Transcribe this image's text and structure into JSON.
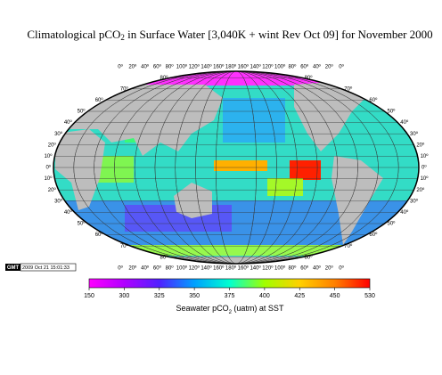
{
  "map": {
    "title": [
      "Climatological pCO",
      "2",
      " in Surface Water [3,040K + wint Rev Oct 09] for November 2000"
    ],
    "lon_labels": [
      "0º",
      "20º",
      "40º",
      "60º",
      "80º",
      "100º",
      "120º",
      "140º",
      "160º",
      "180º",
      "160º",
      "140º",
      "120º",
      "100º",
      "80º",
      "60º",
      "40º",
      "20º",
      "0º"
    ],
    "lat_labels": [
      "80º",
      "70º",
      "60º",
      "50º",
      "40º",
      "30º",
      "20º",
      "10º",
      "0º",
      "10º",
      "20º",
      "30º",
      "40º",
      "50º",
      "60º",
      "70º",
      "80º"
    ],
    "stamp": {
      "logo": "GMT",
      "time": "2009 Oct 21 15:01:33"
    },
    "colorbar": {
      "ticks": [
        150,
        300,
        325,
        350,
        375,
        400,
        425,
        450,
        530
      ],
      "colors": [
        "#ff00ff",
        "#b000ff",
        "#5020ff",
        "#00a0ff",
        "#00ffd0",
        "#a0ff00",
        "#ffd000",
        "#ff8000",
        "#ff0000"
      ],
      "label": [
        "Seawater  pCO",
        "2",
        " (uatm) at SST"
      ]
    }
  }
}
